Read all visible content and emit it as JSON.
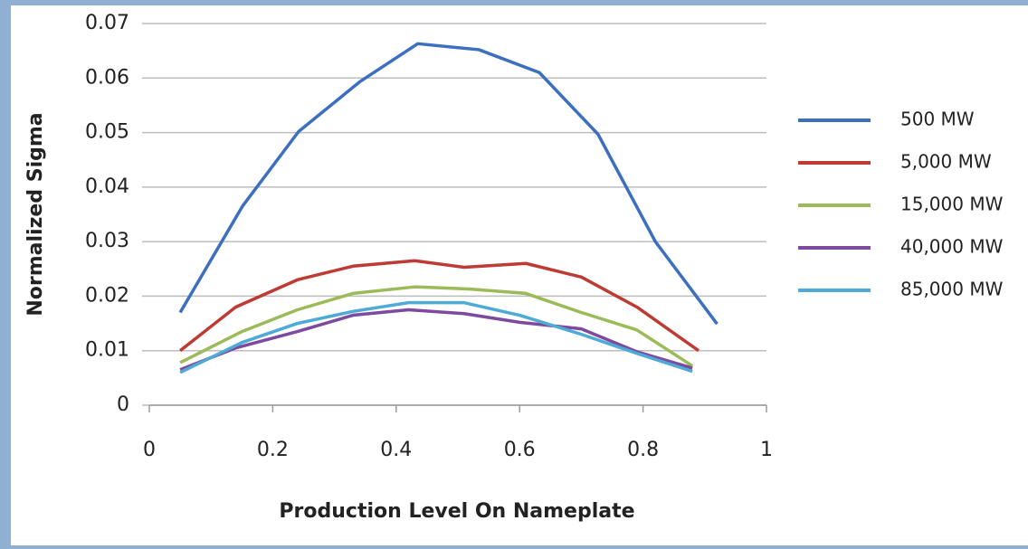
{
  "chart_data": {
    "type": "line",
    "xlabel": "Production Level On Nameplate",
    "ylabel": "Normalized Sigma",
    "xlim": [
      0,
      1
    ],
    "xticks": [
      0,
      0.2,
      0.4,
      0.6,
      0.8,
      1
    ],
    "ylim": [
      0,
      0.07
    ],
    "yticks": [
      0,
      0.01,
      0.02,
      0.03,
      0.04,
      0.05,
      0.06,
      0.07
    ],
    "grid": true,
    "legend": "right",
    "series": [
      {
        "name": "500 MW",
        "color": "#3d6fc0",
        "x": [
          0.05,
          0.151,
          0.242,
          0.342,
          0.435,
          0.534,
          0.632,
          0.727,
          0.82,
          0.92
        ],
        "values": [
          0.017,
          0.0365,
          0.0502,
          0.0594,
          0.0663,
          0.0652,
          0.061,
          0.0497,
          0.03,
          0.0149
        ]
      },
      {
        "name": "5,000 MW",
        "color": "#be3a33",
        "x": [
          0.05,
          0.14,
          0.24,
          0.33,
          0.43,
          0.51,
          0.61,
          0.7,
          0.79,
          0.89
        ],
        "values": [
          0.01,
          0.018,
          0.023,
          0.0255,
          0.0265,
          0.0253,
          0.026,
          0.0235,
          0.018,
          0.01
        ]
      },
      {
        "name": "15,000 MW",
        "color": "#9bbb59",
        "x": [
          0.05,
          0.15,
          0.24,
          0.33,
          0.43,
          0.52,
          0.61,
          0.7,
          0.79,
          0.88
        ],
        "values": [
          0.0078,
          0.0135,
          0.0175,
          0.0205,
          0.0217,
          0.0213,
          0.0205,
          0.017,
          0.0138,
          0.0072
        ]
      },
      {
        "name": "40,000 MW",
        "color": "#7e4aa0",
        "x": [
          0.05,
          0.14,
          0.24,
          0.33,
          0.42,
          0.51,
          0.6,
          0.7,
          0.79,
          0.88
        ],
        "values": [
          0.0065,
          0.0105,
          0.0135,
          0.0165,
          0.0175,
          0.0168,
          0.0152,
          0.014,
          0.0098,
          0.0068
        ]
      },
      {
        "name": "85,000 MW",
        "color": "#4eaad6",
        "x": [
          0.05,
          0.15,
          0.24,
          0.33,
          0.42,
          0.51,
          0.6,
          0.7,
          0.79,
          0.88
        ],
        "values": [
          0.006,
          0.0115,
          0.015,
          0.0172,
          0.0188,
          0.0188,
          0.0165,
          0.013,
          0.0095,
          0.0062
        ]
      }
    ]
  }
}
